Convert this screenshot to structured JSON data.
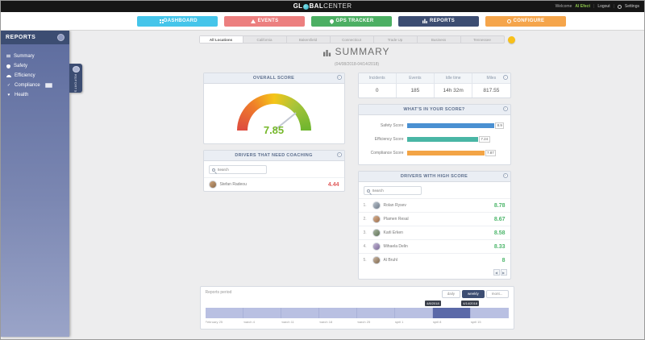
{
  "colors": {
    "nav_dashboard": "#45c5ea",
    "nav_events": "#ec7f7f",
    "nav_gps": "#4caf63",
    "nav_reports": "#3c4d72",
    "nav_configure": "#f5a54b",
    "safety_bar": "#4a90d2",
    "efficiency_bar": "#49b6a5",
    "compliance_bar": "#f3a445",
    "gauge_value_green": "#76b82a",
    "coaching_score_red": "#e05a5a",
    "high_score_green": "#4db66b",
    "timeline_bar": "#b9c0e2",
    "timeline_selected": "#5b69a8",
    "help_circle": "#f8c01a"
  },
  "icons": {
    "info": "i",
    "prev": "◀",
    "next": "▶",
    "check": "✓",
    "heart": "♥"
  },
  "topbar": {
    "logo_prefix": "GL",
    "logo_mid": "BAL",
    "logo_suffix": "CENTER",
    "welcome_label": "Welcome",
    "user_name": "AI Efect",
    "divider": "|",
    "logout_label": "Logout",
    "settings_label": "Settings"
  },
  "nav": {
    "items": [
      {
        "label": "DASHBOARD"
      },
      {
        "label": "EVENTS"
      },
      {
        "label": "GPS TRACKER"
      },
      {
        "label": "REPORTS"
      },
      {
        "label": "CONFIGURE"
      }
    ]
  },
  "sidebar": {
    "title": "REPORTS",
    "items": [
      {
        "label": "Summary"
      },
      {
        "label": "Safety"
      },
      {
        "label": "Efficiency"
      },
      {
        "label": "Compliance"
      },
      {
        "label": "Health"
      }
    ],
    "flyout_label": "REPORTS"
  },
  "tabs": {
    "items": [
      "All Locations",
      "California",
      "Bakersfield",
      "Connecticut",
      "Trade Up",
      "Business",
      "Tennessee"
    ]
  },
  "summary": {
    "title": "SUMMARY",
    "date_range": "(04/08/2018-04/14/2018)"
  },
  "overall_score": {
    "header": "OVERALL SCORE",
    "value": "7.85"
  },
  "stats": {
    "columns": [
      {
        "label": "Incidents",
        "value": "0"
      },
      {
        "label": "Events",
        "value": "185"
      },
      {
        "label": "Idle time",
        "value": "14h 32m"
      },
      {
        "label": "Miles",
        "value": "817.55"
      }
    ]
  },
  "score_breakdown": {
    "header": "WHAT'S IN YOUR SCORE?",
    "rows": [
      {
        "label": "Safety Score",
        "value": 8.9
      },
      {
        "label": "Efficiency Score",
        "value": 7.24
      },
      {
        "label": "Compliance Score",
        "value": 7.87
      }
    ]
  },
  "coaching": {
    "header": "DRIVERS THAT NEED COACHING",
    "search_placeholder": "Search",
    "rows": [
      {
        "name": "Stefan Radeou",
        "score": "4.44"
      }
    ]
  },
  "high_score": {
    "header": "DRIVERS WITH HIGH SCORE",
    "search_placeholder": "Search",
    "rows": [
      {
        "rank": "1.",
        "name": "Rolan Rysev",
        "score": "8.78"
      },
      {
        "rank": "2.",
        "name": "Plamen Resal",
        "score": "8.67"
      },
      {
        "rank": "3.",
        "name": "Karli Erken",
        "score": "8.58"
      },
      {
        "rank": "4.",
        "name": "Mihaela Delin",
        "score": "8.33"
      },
      {
        "rank": "5.",
        "name": "Al Bruhl",
        "score": "8"
      }
    ]
  },
  "timeline": {
    "label": "Reports period",
    "buttons": [
      {
        "label": "daily",
        "active": false
      },
      {
        "label": "weekly",
        "active": true
      },
      {
        "label": "mont...",
        "active": false
      }
    ],
    "tooltip_start": "4/8/2018",
    "tooltip_end": "4/14/2018",
    "axis_labels": [
      "February 25",
      "march 4",
      "march 11",
      "march 18",
      "march 25",
      "april 1",
      "april 8",
      "april 15"
    ],
    "selected_segment_index": 6,
    "segment_count": 8
  }
}
